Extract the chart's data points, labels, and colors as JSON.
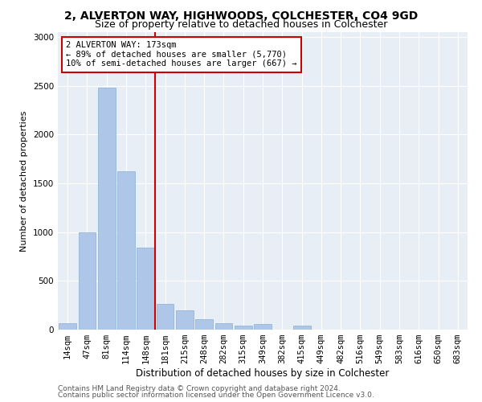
{
  "title_line1": "2, ALVERTON WAY, HIGHWOODS, COLCHESTER, CO4 9GD",
  "title_line2": "Size of property relative to detached houses in Colchester",
  "xlabel": "Distribution of detached houses by size in Colchester",
  "ylabel": "Number of detached properties",
  "categories": [
    "14sqm",
    "47sqm",
    "81sqm",
    "114sqm",
    "148sqm",
    "181sqm",
    "215sqm",
    "248sqm",
    "282sqm",
    "315sqm",
    "349sqm",
    "382sqm",
    "415sqm",
    "449sqm",
    "482sqm",
    "516sqm",
    "549sqm",
    "583sqm",
    "616sqm",
    "650sqm",
    "683sqm"
  ],
  "values": [
    70,
    1000,
    2480,
    1620,
    840,
    260,
    195,
    110,
    70,
    45,
    55,
    0,
    38,
    0,
    0,
    0,
    0,
    0,
    0,
    0,
    0
  ],
  "bar_color": "#aec6e8",
  "bar_edge_color": "#8ab0d0",
  "vline_color": "#cc0000",
  "annotation_text": "2 ALVERTON WAY: 173sqm\n← 89% of detached houses are smaller (5,770)\n10% of semi-detached houses are larger (667) →",
  "annotation_box_color": "white",
  "annotation_box_edge_color": "#cc0000",
  "ylim": [
    0,
    3050
  ],
  "yticks": [
    0,
    500,
    1000,
    1500,
    2000,
    2500,
    3000
  ],
  "background_color": "#e8eef5",
  "footer_line1": "Contains HM Land Registry data © Crown copyright and database right 2024.",
  "footer_line2": "Contains public sector information licensed under the Open Government Licence v3.0.",
  "title_fontsize": 10,
  "subtitle_fontsize": 9,
  "xlabel_fontsize": 8.5,
  "ylabel_fontsize": 8,
  "tick_fontsize": 7.5,
  "annotation_fontsize": 7.5,
  "footer_fontsize": 6.5
}
